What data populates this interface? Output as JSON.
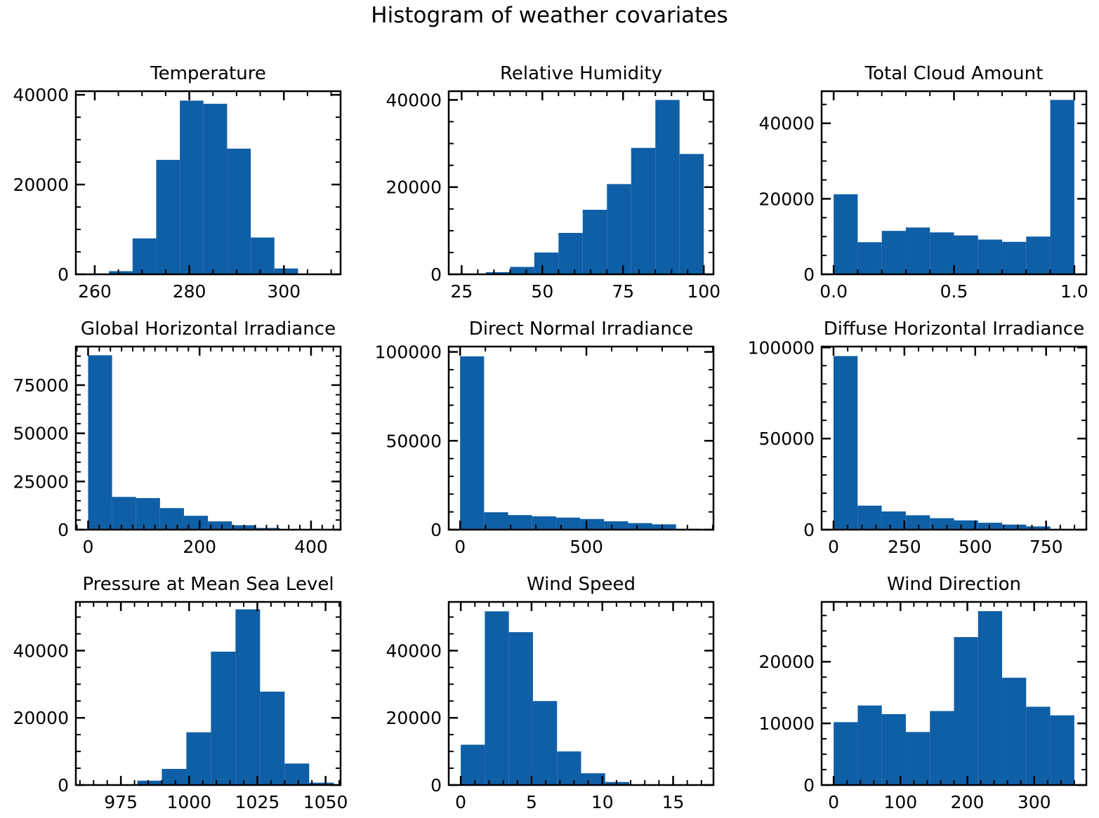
{
  "figure": {
    "title": "Histogram of weather covariates"
  },
  "colors": {
    "bar": "#0f5fa6",
    "axis": "#000000"
  },
  "chart_data": [
    {
      "type": "bar",
      "title": "Temperature",
      "bin_edges": [
        263,
        268,
        273,
        278,
        283,
        288,
        293,
        298,
        303,
        308,
        313
      ],
      "values": [
        700,
        8000,
        25500,
        38700,
        38000,
        28000,
        8200,
        1300,
        100,
        0
      ],
      "xlim": [
        256,
        312
      ],
      "ylim": [
        0,
        40800
      ],
      "xticks": [
        260,
        280,
        300
      ],
      "xtick_labels": [
        "260",
        "280",
        "300"
      ],
      "yticks": [
        0,
        20000,
        40000
      ],
      "ytick_labels": [
        "0",
        "20000",
        "40000"
      ],
      "x_minor": 5,
      "y_minor": 5000
    },
    {
      "type": "bar",
      "title": "Relative Humidity",
      "bin_edges": [
        25,
        32.5,
        40,
        47.5,
        55,
        62.5,
        70,
        77.5,
        85,
        92.5,
        100
      ],
      "values": [
        100,
        500,
        1700,
        5000,
        9500,
        14800,
        20700,
        29000,
        40000,
        27600
      ],
      "xlim": [
        21,
        103
      ],
      "ylim": [
        0,
        42000
      ],
      "xticks": [
        25,
        50,
        75,
        100
      ],
      "xtick_labels": [
        "25",
        "50",
        "75",
        "100"
      ],
      "yticks": [
        0,
        20000,
        40000
      ],
      "ytick_labels": [
        "0",
        "20000",
        "40000"
      ],
      "x_minor": 5,
      "y_minor": 5000
    },
    {
      "type": "bar",
      "title": "Total Cloud Amount",
      "bin_edges": [
        0,
        0.1,
        0.2,
        0.3,
        0.4,
        0.5,
        0.6,
        0.7,
        0.8,
        0.9,
        1.0
      ],
      "values": [
        21200,
        8500,
        11500,
        12400,
        11100,
        10300,
        9200,
        8600,
        10000,
        46200
      ],
      "xlim": [
        -0.05,
        1.05
      ],
      "ylim": [
        0,
        48500
      ],
      "xticks": [
        0,
        0.5,
        1.0
      ],
      "xtick_labels": [
        "0.0",
        "0.5",
        "1.0"
      ],
      "yticks": [
        0,
        20000,
        40000
      ],
      "ytick_labels": [
        "0",
        "20000",
        "40000"
      ],
      "x_minor": 0.1,
      "y_minor": 5000
    },
    {
      "type": "bar",
      "title": "Global Horizontal Irradiance",
      "bin_edges": [
        0,
        43,
        86,
        129,
        172,
        215,
        258,
        301,
        344,
        387,
        430
      ],
      "values": [
        90500,
        17000,
        16400,
        11200,
        7200,
        4300,
        2300,
        900,
        300,
        100
      ],
      "xlim": [
        -22,
        453
      ],
      "ylim": [
        0,
        95000
      ],
      "xticks": [
        0,
        200,
        400
      ],
      "xtick_labels": [
        "0",
        "200",
        "400"
      ],
      "yticks": [
        0,
        25000,
        50000,
        75000
      ],
      "ytick_labels": [
        "0",
        "25000",
        "50000",
        "75000"
      ],
      "x_minor": 20,
      "y_minor": 5000
    },
    {
      "type": "bar",
      "title": "Direct Normal Irradiance",
      "bin_edges": [
        0,
        95,
        190,
        285,
        380,
        475,
        570,
        665,
        760,
        855,
        950
      ],
      "values": [
        97500,
        9800,
        8200,
        7500,
        6800,
        6000,
        4700,
        3700,
        3000,
        500
      ],
      "xlim": [
        -45,
        1003
      ],
      "ylim": [
        0,
        103000
      ],
      "xticks": [
        0,
        500
      ],
      "xtick_labels": [
        "0",
        "500"
      ],
      "yticks": [
        0,
        50000,
        100000
      ],
      "ytick_labels": [
        "0",
        "50000",
        "100000"
      ],
      "x_minor": 100,
      "y_minor": 10000
    },
    {
      "type": "bar",
      "title": "Diffuse Horizontal Irradiance",
      "bin_edges": [
        0,
        85,
        170,
        255,
        340,
        425,
        510,
        595,
        680,
        765,
        850
      ],
      "values": [
        95300,
        13200,
        10000,
        7900,
        6300,
        5100,
        3800,
        2800,
        1800,
        400
      ],
      "xlim": [
        -42,
        892
      ],
      "ylim": [
        0,
        100500
      ],
      "xticks": [
        0,
        250,
        500,
        750
      ],
      "xtick_labels": [
        "0",
        "250",
        "500",
        "750"
      ],
      "yticks": [
        0,
        50000,
        100000
      ],
      "ytick_labels": [
        "0",
        "50000",
        "100000"
      ],
      "x_minor": 50,
      "y_minor": 10000
    },
    {
      "type": "bar",
      "title": "Pressure at Mean Sea Level",
      "bin_edges": [
        963,
        972,
        981,
        990,
        999,
        1008,
        1017,
        1026,
        1035,
        1044,
        1053
      ],
      "values": [
        100,
        200,
        1300,
        4800,
        15700,
        39700,
        52300,
        27800,
        6400,
        700
      ],
      "xlim": [
        958.5,
        1055.5
      ],
      "ylim": [
        0,
        54500
      ],
      "xticks": [
        975,
        1000,
        1025,
        1050
      ],
      "xtick_labels": [
        "975",
        "1000",
        "1025",
        "1050"
      ],
      "x_minor": 5,
      "y_minor": 5000,
      "yticks": [
        0,
        20000,
        40000
      ],
      "ytick_labels": [
        "0",
        "20000",
        "40000"
      ]
    },
    {
      "type": "bar",
      "title": "Wind Speed",
      "bin_edges": [
        0,
        1.7,
        3.4,
        5.1,
        6.8,
        8.5,
        10.2,
        11.9,
        13.6,
        15.3,
        17
      ],
      "values": [
        12000,
        51700,
        45500,
        25000,
        10000,
        3500,
        900,
        200,
        50,
        20
      ],
      "xlim": [
        -0.85,
        17.85
      ],
      "ylim": [
        0,
        54500
      ],
      "xticks": [
        0,
        5,
        10,
        15
      ],
      "xtick_labels": [
        "0",
        "5",
        "10",
        "15"
      ],
      "yticks": [
        0,
        20000,
        40000
      ],
      "ytick_labels": [
        "0",
        "20000",
        "40000"
      ],
      "x_minor": 1,
      "y_minor": 5000
    },
    {
      "type": "bar",
      "title": "Wind Direction",
      "bin_edges": [
        0,
        36,
        72,
        108,
        144,
        180,
        216,
        252,
        288,
        324,
        360
      ],
      "values": [
        10200,
        12900,
        11500,
        8600,
        12000,
        24000,
        28200,
        17400,
        12700,
        11300
      ],
      "xlim": [
        -18,
        378
      ],
      "ylim": [
        0,
        29700
      ],
      "xticks": [
        0,
        100,
        200,
        300
      ],
      "xtick_labels": [
        "0",
        "100",
        "200",
        "300"
      ],
      "yticks": [
        0,
        10000,
        20000
      ],
      "ytick_labels": [
        "0",
        "10000",
        "20000"
      ],
      "x_minor": 20,
      "y_minor": 2500
    }
  ]
}
